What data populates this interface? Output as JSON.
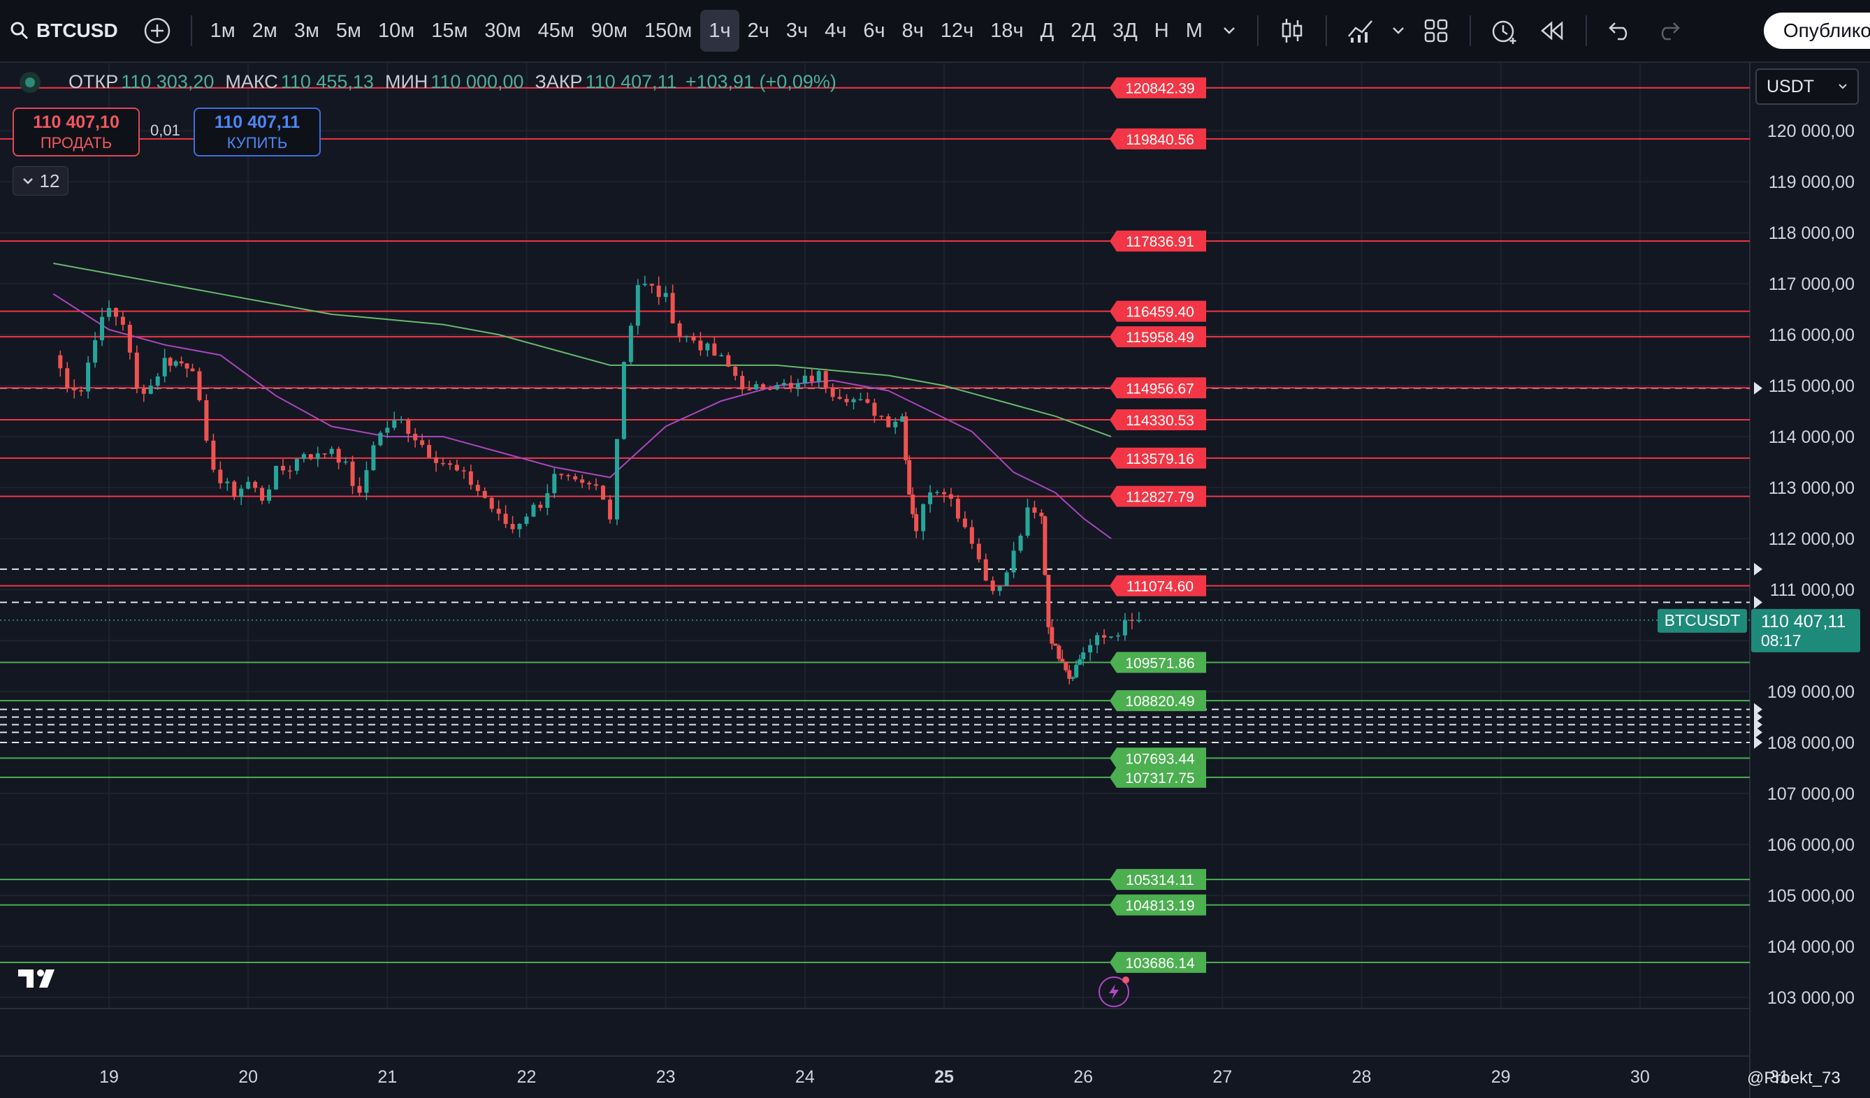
{
  "toolbar": {
    "symbol": "BTCUSD",
    "intervals": [
      "1м",
      "2м",
      "3м",
      "5м",
      "10м",
      "15м",
      "30м",
      "45м",
      "90м",
      "150м",
      "1ч",
      "2ч",
      "3ч",
      "4ч",
      "6ч",
      "8ч",
      "12ч",
      "18ч",
      "Д",
      "2Д",
      "3Д",
      "Н",
      "М"
    ],
    "active_interval": "1ч",
    "publish_label": "Опублико"
  },
  "ohlc": {
    "open_label": "ОТКР",
    "open": "110 303,20",
    "high_label": "МАКС",
    "high": "110 455,13",
    "low_label": "МИН",
    "low": "110 000,00",
    "close_label": "ЗАКР",
    "close": "110 407,11",
    "change": "+103,91 (+0,09%)"
  },
  "trade": {
    "sell_price": "110 407,10",
    "sell_label": "ПРОДАТЬ",
    "spread": "0,01",
    "buy_price": "110 407,11",
    "buy_label": "КУПИТЬ"
  },
  "indicators": {
    "count": "12"
  },
  "currency": {
    "value": "USDT"
  },
  "watermark": "@Proekt_73",
  "colors": {
    "bg": "#131722",
    "up": "#26a69a",
    "down": "#ef5350",
    "res_line": "#f23645",
    "sup_line": "#4caf50",
    "ma_fast": "#ab47bc",
    "ma_slow": "#66bb6a",
    "last_price_bg": "#1e8a7a"
  },
  "chart_data": {
    "type": "candlestick",
    "symbol": "BTCUSDT",
    "timeframe": "1ч",
    "x_ticks": [
      "19",
      "20",
      "21",
      "22",
      "23",
      "24",
      "25",
      "26",
      "27",
      "28",
      "29",
      "30",
      "31"
    ],
    "y_ticks": [
      103000,
      104000,
      105000,
      106000,
      107000,
      108000,
      109000,
      110000,
      111000,
      112000,
      113000,
      114000,
      115000,
      116000,
      117000,
      118000,
      119000,
      120000
    ],
    "y_tick_labels": [
      "103 000,00",
      "104 000,00",
      "105 000,00",
      "106 000,00",
      "107 000,00",
      "108 000,00",
      "109 000,00",
      "",
      "111 000,00",
      "112 000,00",
      "113 000,00",
      "114 000,00",
      "115 000,00",
      "116 000,00",
      "117 000,00",
      "118 000,00",
      "119 000,00",
      "120 000,00"
    ],
    "ylim": [
      102800,
      121100
    ],
    "last_price": {
      "label": "BTCUSDT",
      "value": "110 407,11",
      "countdown": "08:17"
    },
    "resistance_levels": [
      {
        "value": 120842.39,
        "label": "120842.39"
      },
      {
        "value": 119840.56,
        "label": "119840.56"
      },
      {
        "value": 117836.91,
        "label": "117836.91"
      },
      {
        "value": 116459.4,
        "label": "116459.40"
      },
      {
        "value": 115958.49,
        "label": "115958.49"
      },
      {
        "value": 114956.67,
        "label": "114956.67"
      },
      {
        "value": 114330.53,
        "label": "114330.53"
      },
      {
        "value": 113579.16,
        "label": "113579.16"
      },
      {
        "value": 112827.79,
        "label": "112827.79"
      },
      {
        "value": 111074.6,
        "label": "111074.60"
      }
    ],
    "support_levels": [
      {
        "value": 109571.86,
        "label": "109571.86"
      },
      {
        "value": 108820.49,
        "label": "108820.49"
      },
      {
        "value": 107693.44,
        "label": "107693.44"
      },
      {
        "value": 107317.75,
        "label": "107317.75"
      },
      {
        "value": 105314.11,
        "label": "105314.11"
      },
      {
        "value": 104813.19,
        "label": "104813.19"
      },
      {
        "value": 103686.14,
        "label": "103686.14"
      }
    ],
    "dashed_levels": [
      114950,
      111400,
      110750,
      108650,
      108500,
      108350,
      108200,
      108000
    ],
    "candle_points": [
      [
        18.6,
        115600
      ],
      [
        18.7,
        115050
      ],
      [
        18.8,
        114900
      ],
      [
        18.9,
        116000
      ],
      [
        19.0,
        116500
      ],
      [
        19.1,
        116250
      ],
      [
        19.2,
        114900
      ],
      [
        19.3,
        115000
      ],
      [
        19.4,
        115500
      ],
      [
        19.6,
        115400
      ],
      [
        19.7,
        113800
      ],
      [
        19.8,
        113100
      ],
      [
        19.9,
        112900
      ],
      [
        20.0,
        113100
      ],
      [
        20.1,
        112800
      ],
      [
        20.2,
        113300
      ],
      [
        20.3,
        113400
      ],
      [
        20.4,
        113700
      ],
      [
        20.5,
        113600
      ],
      [
        20.6,
        113800
      ],
      [
        20.7,
        113400
      ],
      [
        20.8,
        112800
      ],
      [
        20.9,
        113900
      ],
      [
        21.0,
        114200
      ],
      [
        21.1,
        114300
      ],
      [
        21.2,
        114000
      ],
      [
        21.3,
        113700
      ],
      [
        21.4,
        113500
      ],
      [
        21.5,
        113300
      ],
      [
        21.6,
        113100
      ],
      [
        21.7,
        112800
      ],
      [
        21.8,
        112400
      ],
      [
        21.9,
        112200
      ],
      [
        22.0,
        112500
      ],
      [
        22.1,
        112700
      ],
      [
        22.2,
        113200
      ],
      [
        22.3,
        113100
      ],
      [
        22.4,
        113000
      ],
      [
        22.5,
        113000
      ],
      [
        22.6,
        112500
      ],
      [
        22.7,
        115500
      ],
      [
        22.8,
        117000
      ],
      [
        22.9,
        116900
      ],
      [
        23.0,
        116700
      ],
      [
        23.1,
        116000
      ],
      [
        23.2,
        115900
      ],
      [
        23.3,
        115700
      ],
      [
        23.4,
        115500
      ],
      [
        23.5,
        115200
      ],
      [
        23.6,
        114850
      ],
      [
        23.7,
        115000
      ],
      [
        23.8,
        115100
      ],
      [
        23.9,
        114900
      ],
      [
        24.0,
        115100
      ],
      [
        24.1,
        115200
      ],
      [
        24.2,
        114900
      ],
      [
        24.3,
        114800
      ],
      [
        24.4,
        114650
      ],
      [
        24.5,
        114500
      ],
      [
        24.6,
        114300
      ],
      [
        24.7,
        114400
      ],
      [
        24.75,
        112900
      ],
      [
        24.8,
        112200
      ],
      [
        24.9,
        113000
      ],
      [
        25.0,
        113000
      ],
      [
        25.1,
        112500
      ],
      [
        25.2,
        112000
      ],
      [
        25.3,
        111200
      ],
      [
        25.4,
        111000
      ],
      [
        25.5,
        111700
      ],
      [
        25.6,
        112500
      ],
      [
        25.7,
        112400
      ],
      [
        25.75,
        110300
      ],
      [
        25.8,
        109800
      ],
      [
        25.85,
        109700
      ],
      [
        25.9,
        109300
      ],
      [
        25.95,
        109500
      ],
      [
        26.0,
        109800
      ],
      [
        26.1,
        110000
      ],
      [
        26.2,
        110100
      ],
      [
        26.3,
        110300
      ],
      [
        26.4,
        110400
      ]
    ],
    "ma_fast": [
      [
        18.6,
        116800
      ],
      [
        19.0,
        116100
      ],
      [
        19.4,
        115800
      ],
      [
        19.8,
        115600
      ],
      [
        20.2,
        114800
      ],
      [
        20.6,
        114200
      ],
      [
        21.0,
        114000
      ],
      [
        21.4,
        114000
      ],
      [
        21.8,
        113700
      ],
      [
        22.2,
        113400
      ],
      [
        22.6,
        113200
      ],
      [
        22.8,
        113700
      ],
      [
        23.0,
        114200
      ],
      [
        23.4,
        114700
      ],
      [
        23.8,
        115000
      ],
      [
        24.2,
        115100
      ],
      [
        24.6,
        114900
      ],
      [
        24.9,
        114500
      ],
      [
        25.2,
        114100
      ],
      [
        25.5,
        113300
      ],
      [
        25.8,
        112900
      ],
      [
        26.0,
        112400
      ],
      [
        26.2,
        112000
      ]
    ],
    "ma_slow": [
      [
        18.6,
        117400
      ],
      [
        19.0,
        117200
      ],
      [
        19.4,
        117000
      ],
      [
        19.8,
        116800
      ],
      [
        20.2,
        116600
      ],
      [
        20.6,
        116400
      ],
      [
        21.0,
        116300
      ],
      [
        21.4,
        116200
      ],
      [
        21.8,
        116000
      ],
      [
        22.2,
        115700
      ],
      [
        22.6,
        115400
      ],
      [
        23.0,
        115400
      ],
      [
        23.4,
        115400
      ],
      [
        23.8,
        115400
      ],
      [
        24.2,
        115300
      ],
      [
        24.6,
        115200
      ],
      [
        25.0,
        115000
      ],
      [
        25.4,
        114700
      ],
      [
        25.8,
        114400
      ],
      [
        26.2,
        114000
      ]
    ]
  }
}
